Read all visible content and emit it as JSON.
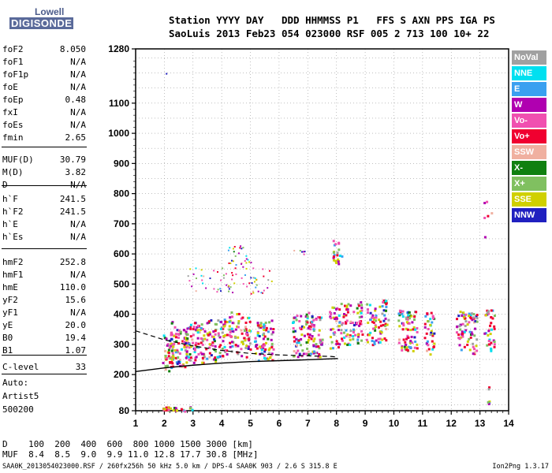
{
  "logo": {
    "line1": "Lowell",
    "line2": "DIGISONDE"
  },
  "header": {
    "labels": "Station YYYY DAY   DDD HHMMSS P1   FFS S AXN PPS IGA PS",
    "values": "SaoLuis 2013 Feb23 054 023000 RSF 005 2 713 100 10+ 22"
  },
  "params": [
    {
      "name": "foF2",
      "value": "8.050"
    },
    {
      "name": "foF1",
      "value": "N/A"
    },
    {
      "name": "foF1p",
      "value": "N/A"
    },
    {
      "name": "foE",
      "value": "N/A"
    },
    {
      "name": "foEp",
      "value": "0.48"
    },
    {
      "name": "fxI",
      "value": "N/A"
    },
    {
      "name": "foEs",
      "value": "N/A"
    },
    {
      "name": "fmin",
      "value": "2.65"
    },
    {
      "name": "MUF(D)",
      "value": "30.79"
    },
    {
      "name": "M(D)",
      "value": "3.82"
    },
    {
      "name": "D",
      "value": "N/A"
    },
    {
      "name": "h`F",
      "value": "241.5"
    },
    {
      "name": "h`F2",
      "value": "241.5"
    },
    {
      "name": "h`E",
      "value": "N/A"
    },
    {
      "name": "h`Es",
      "value": "N/A"
    },
    {
      "name": "hmF2",
      "value": "252.8"
    },
    {
      "name": "hmF1",
      "value": "N/A"
    },
    {
      "name": "hmE",
      "value": "110.0"
    },
    {
      "name": "yF2",
      "value": "15.6"
    },
    {
      "name": "yF1",
      "value": "N/A"
    },
    {
      "name": "yE",
      "value": "20.0"
    },
    {
      "name": "B0",
      "value": "19.4"
    },
    {
      "name": "B1",
      "value": "1.07"
    },
    {
      "name": "C-level",
      "value": "33"
    }
  ],
  "auto": {
    "line1": "Auto:",
    "line2": "Artist5",
    "line3": "500200"
  },
  "legend": [
    {
      "label": "NoVal",
      "color": "#a0a0a0"
    },
    {
      "label": "NNE",
      "color": "#00e0f0"
    },
    {
      "label": "E",
      "color": "#3aa0f0"
    },
    {
      "label": "W",
      "color": "#b000b0"
    },
    {
      "label": "Vo-",
      "color": "#f050b0"
    },
    {
      "label": "Vo+",
      "color": "#f00030"
    },
    {
      "label": "SSW",
      "color": "#f0b0a0"
    },
    {
      "label": "X-",
      "color": "#108010"
    },
    {
      "label": "X+",
      "color": "#80c060"
    },
    {
      "label": "SSE",
      "color": "#d0d000"
    },
    {
      "label": "NNW",
      "color": "#2020c0"
    }
  ],
  "footer": {
    "d_line": "D    100  200  400  600  800 1000 1500 3000 [km]",
    "muf_line": "MUF  8.4  8.5  9.0  9.9 11.0 12.8 17.7 30.8 [MHz]",
    "source": "SAA0K_2013054023000.RSF / 260fx256h 50 kHz 5.0 km / DPS-4 SAA0K 903 / 2.6 S 315.8 E",
    "version": "Ion2Png 1.3.17"
  },
  "chart_data": {
    "type": "scatter",
    "xlim": [
      1,
      14
    ],
    "ylim": [
      80,
      1280
    ],
    "x_ticks": [
      1,
      2,
      3,
      4,
      5,
      6,
      7,
      8,
      9,
      10,
      11,
      12,
      13,
      14
    ],
    "y_ticks": [
      80,
      200,
      300,
      400,
      500,
      600,
      700,
      800,
      900,
      1000,
      1100,
      1280
    ],
    "grid": true,
    "legend_position": "right",
    "trace": {
      "name": "echoes",
      "x": [
        2.1,
        2.3,
        2.6,
        2.9,
        3.2,
        3.6,
        4.0,
        4.4,
        4.8,
        5.3,
        5.6,
        6.6,
        7.0,
        7.3,
        7.9,
        8.3,
        8.7,
        9.2,
        9.6,
        10.3,
        10.6,
        11.2,
        12.3,
        12.7,
        13.3
      ],
      "y": [
        262,
        300,
        285,
        300,
        300,
        305,
        320,
        330,
        320,
        300,
        310,
        320,
        330,
        320,
        350,
        360,
        365,
        360,
        370,
        340,
        335,
        330,
        335,
        330,
        340
      ]
    },
    "profile": {
      "x": [
        1.0,
        2.0,
        3.0,
        4.0,
        5.0,
        6.0,
        7.0,
        8.05
      ],
      "y": [
        210,
        222,
        231,
        238,
        243,
        246,
        249,
        253
      ]
    },
    "virtual_trace": {
      "x": [
        1.0,
        1.5,
        2.0,
        3.0,
        4.0,
        5.0,
        6.0,
        7.0,
        7.8,
        8.05
      ],
      "y": [
        345,
        330,
        315,
        295,
        280,
        270,
        265,
        262,
        260,
        258
      ]
    }
  }
}
